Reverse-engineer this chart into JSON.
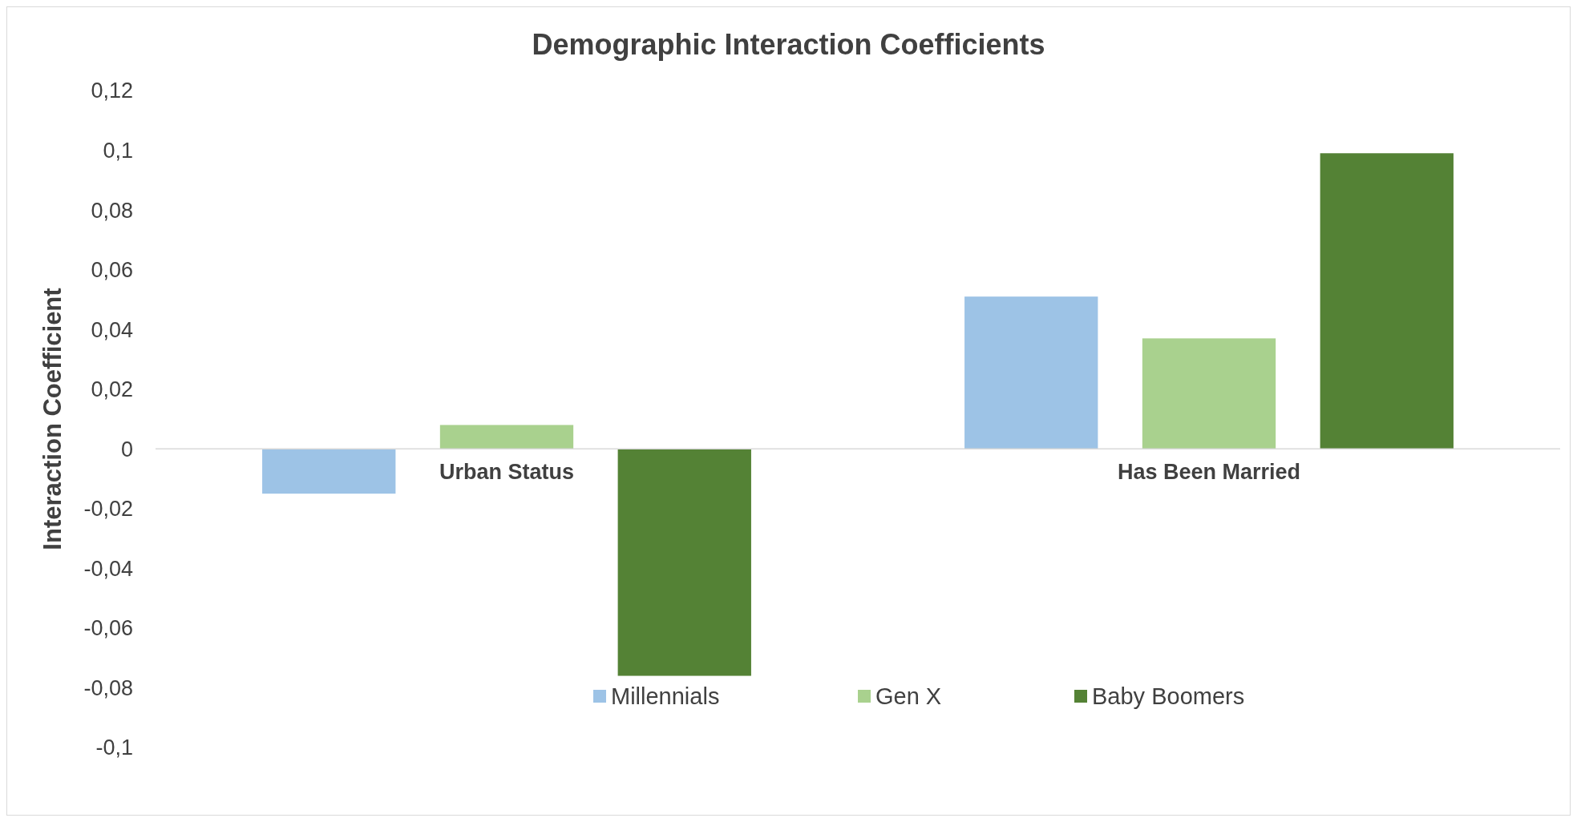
{
  "chart_data": {
    "type": "bar",
    "title": "Demographic Interaction Coefficients",
    "ylabel": "Interaction Coefficient",
    "categories": [
      "Urban Status",
      "Has Been Married"
    ],
    "series": [
      {
        "name": "Millennials",
        "color": "#9dc3e6",
        "values": [
          -0.015,
          0.051
        ]
      },
      {
        "name": "Gen X",
        "color": "#a9d18e",
        "values": [
          0.008,
          0.037
        ]
      },
      {
        "name": "Baby Boomers",
        "color": "#548235",
        "values": [
          -0.076,
          0.099
        ]
      }
    ],
    "ylim": [
      -0.1,
      0.12
    ],
    "yticks": [
      {
        "value": -0.1,
        "label": "-0,1"
      },
      {
        "value": -0.08,
        "label": "-0,08"
      },
      {
        "value": -0.06,
        "label": "-0,06"
      },
      {
        "value": -0.04,
        "label": "-0,04"
      },
      {
        "value": -0.02,
        "label": "-0,02"
      },
      0,
      {
        "value": 0.02,
        "label": "0,02"
      },
      {
        "value": 0.04,
        "label": "0,04"
      },
      {
        "value": 0.06,
        "label": "0,06"
      },
      {
        "value": 0.08,
        "label": "0,08"
      },
      {
        "value": 0.1,
        "label": "0,1"
      },
      {
        "value": 0.12,
        "label": "0,12"
      }
    ],
    "grid": false,
    "legend": "bottom"
  }
}
